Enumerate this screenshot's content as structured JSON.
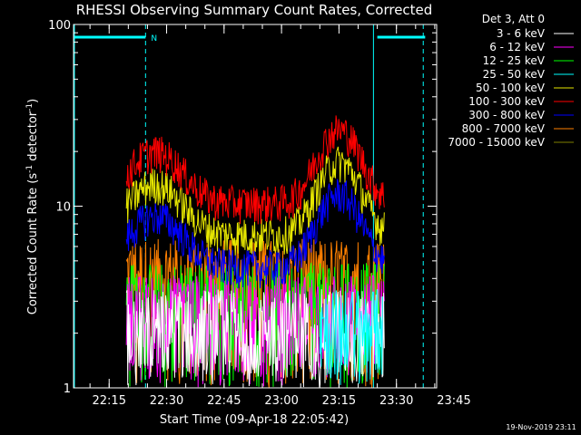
{
  "chart_data": {
    "type": "line",
    "title": "RHESSI Observing Summary Count Rates, Corrected",
    "xlabel": "Start Time (09-Apr-18 22:05:42)",
    "ylabel_main": "Corrected Count Rate (s",
    "ylabel_exp1": "-1",
    "ylabel_mid": " detector",
    "ylabel_exp2": "-1",
    "ylabel_end": ")",
    "yscale": "log",
    "ylim": [
      1,
      100
    ],
    "xlim_minutes": [
      5.7,
      100.5
    ],
    "yticks": [
      {
        "value": 1,
        "label": "1"
      },
      {
        "value": 10,
        "label": "10"
      },
      {
        "value": 100,
        "label": "100"
      }
    ],
    "xticks": [
      {
        "minutes": 15,
        "label": "22:15"
      },
      {
        "minutes": 30,
        "label": "22:30"
      },
      {
        "minutes": 45,
        "label": "22:45"
      },
      {
        "minutes": 60,
        "label": "23:00"
      },
      {
        "minutes": 75,
        "label": "23:15"
      },
      {
        "minutes": 90,
        "label": "23:30"
      },
      {
        "minutes": 105,
        "label": "23:45"
      }
    ],
    "legend_header": "Det 3, Att 0",
    "legend_placement": "top-right outside",
    "series": [
      {
        "name": "3 - 6 keV",
        "color": "#ffffff",
        "level": 2.0,
        "start": 19.5,
        "end": 87.0
      },
      {
        "name": "6 - 12 keV",
        "color": "#ff00ff",
        "level": 2.4,
        "start": 19.5,
        "end": 87.0
      },
      {
        "name": "12 - 25 keV",
        "color": "#00ff00",
        "level": 2.8,
        "start": 19.5,
        "end": 87.0
      },
      {
        "name": "25 - 50 keV",
        "color": "#00ffff",
        "level": 2.0,
        "start": 70.0,
        "end": 86.5
      },
      {
        "name": "50 - 100 keV",
        "color": "#e6e600",
        "level": 12.0,
        "start": 19.5,
        "end": 87.0
      },
      {
        "name": "100 - 300 keV",
        "color": "#ff0000",
        "level": 18.0,
        "start": 19.5,
        "end": 87.0
      },
      {
        "name": "300 - 800 keV",
        "color": "#0000ff",
        "level": 8.0,
        "start": 19.5,
        "end": 87.0
      },
      {
        "name": "800 - 7000 keV",
        "color": "#ff8000",
        "level": 4.0,
        "start": 19.5,
        "end": 87.0
      },
      {
        "name": "7000 - 15000 keV",
        "color": "#808000",
        "level": 0,
        "start": 0,
        "end": 0
      }
    ],
    "annotation_n": "N",
    "night_markers_minutes": [
      24.5,
      97.0
    ],
    "saa_markers_minutes": [
      84.0
    ],
    "cyan_segments_minutes": [
      [
        5.7,
        24.5
      ],
      [
        85.0,
        97.5
      ]
    ],
    "footer_date": "19-Nov-2019 23:11"
  }
}
